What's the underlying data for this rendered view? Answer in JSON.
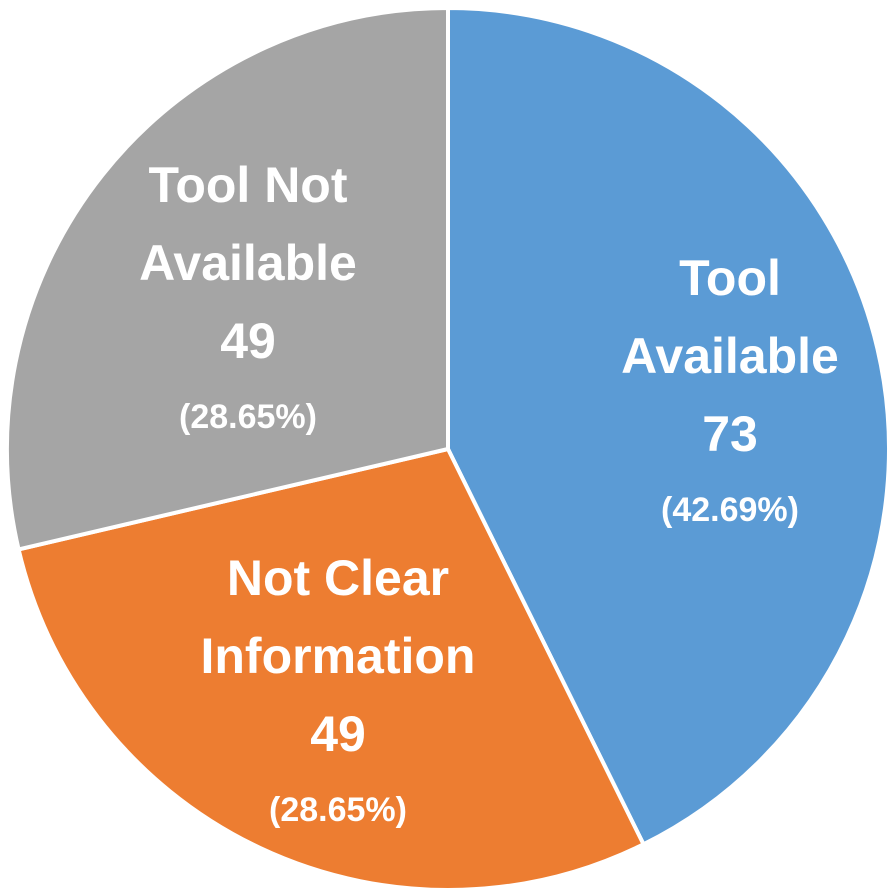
{
  "chart_data": {
    "type": "pie",
    "title": "",
    "slices": [
      {
        "name_lines": [
          "Tool",
          "Available"
        ],
        "value": 73,
        "value_label": "73",
        "percent_label": "(42.69%)",
        "color": "#5b9bd5"
      },
      {
        "name_lines": [
          "Not Clear",
          "Information"
        ],
        "value": 49,
        "value_label": "49",
        "percent_label": "(28.65%)",
        "color": "#ed7d31"
      },
      {
        "name_lines": [
          "Tool Not",
          "Available"
        ],
        "value": 49,
        "value_label": "49",
        "percent_label": "(28.65%)",
        "color": "#a5a5a5"
      }
    ],
    "start_angle": "12 o'clock",
    "direction": "clockwise",
    "legend": "none",
    "data_labels": "inside slices"
  }
}
